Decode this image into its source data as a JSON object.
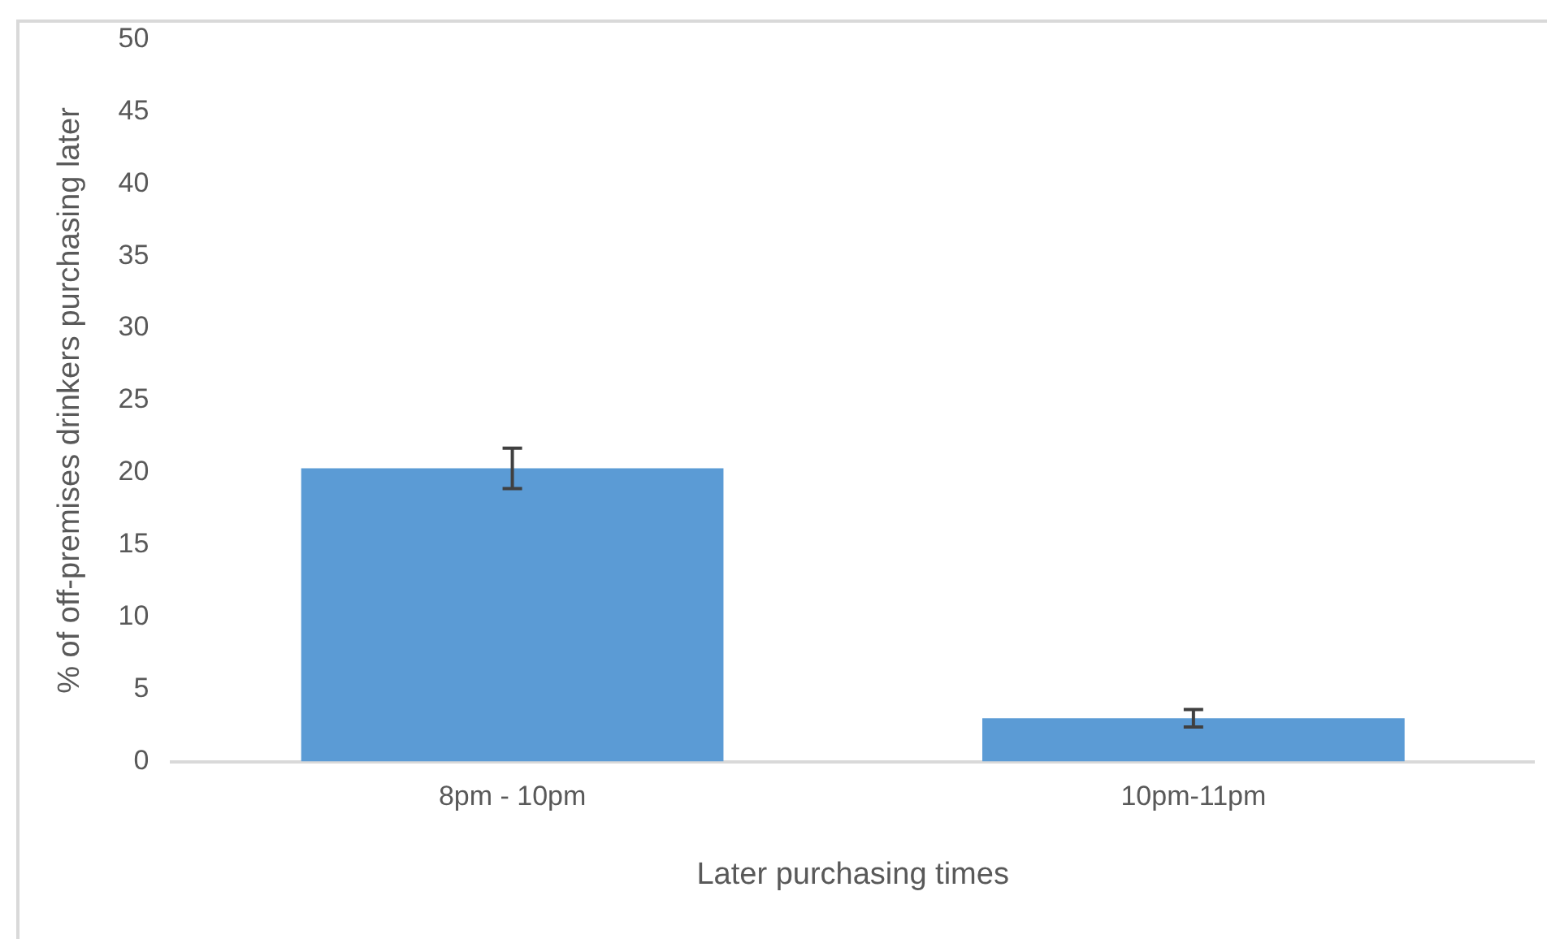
{
  "chart_data": {
    "type": "bar",
    "xlabel": "Later purchasing times",
    "ylabel": "% of off-premises drinkers purchasing later",
    "categories": [
      "8pm - 10pm",
      "10pm-11pm"
    ],
    "values": [
      20.3,
      3.0
    ],
    "errors": [
      1.4,
      0.6
    ],
    "color": "#5b9bd5",
    "ylim": [
      0,
      50
    ],
    "yticks": [
      0,
      5,
      10,
      15,
      20,
      25,
      30,
      35,
      40,
      45,
      50
    ],
    "grid": false,
    "legend": false
  }
}
